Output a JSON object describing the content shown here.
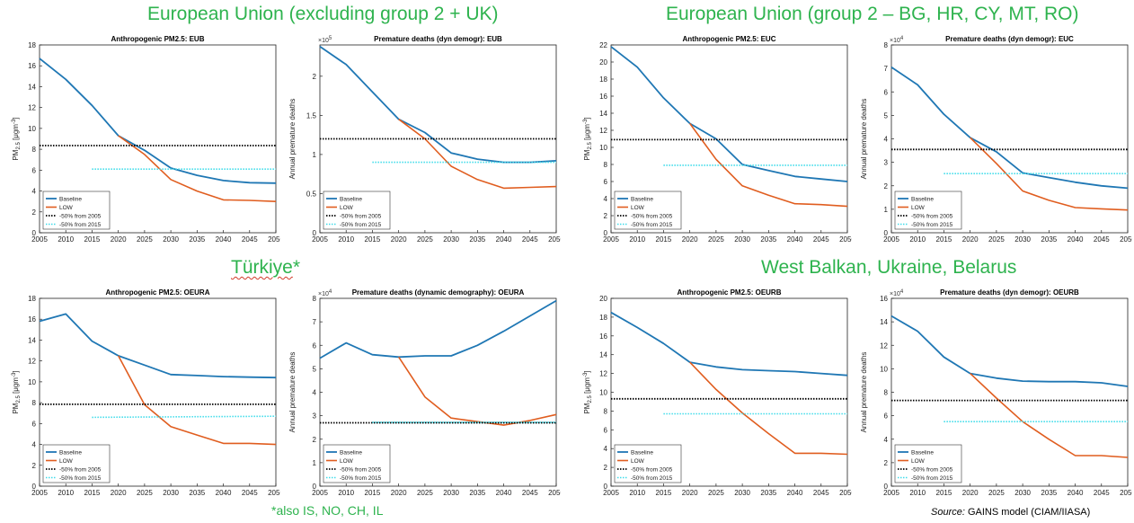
{
  "region_titles": {
    "eub": "European Union (excluding group 2 + UK)",
    "euc": "European Union (group 2 – BG, HR, CY, MT, RO)",
    "turkiye_word": "Türkiye",
    "turkiye_star": "*",
    "balkan": "West Balkan, Ukraine, Belarus"
  },
  "footnote": "*also IS, NO, CH, IL",
  "source": {
    "label": "Source:",
    "text": " GAINS model (CIAM/IIASA)"
  },
  "colors": {
    "baseline": "#1f77b4",
    "low": "#e05d1f",
    "ref2005": "#000000",
    "ref2015": "#3fdcea",
    "title_green": "#2eb34e"
  },
  "chart_data": [
    {
      "id": "pm_eub",
      "type": "line",
      "title": "Anthropogenic PM2.5: EUB",
      "ylabel": "PM2.5 [μgm-3]",
      "ylabel_kind": "pm",
      "x": [
        2005,
        2010,
        2015,
        2020,
        2025,
        2030,
        2035,
        2040,
        2045,
        2050
      ],
      "xticks": [
        "2005",
        "2010",
        "2015",
        "2020",
        "2025",
        "2030",
        "2035",
        "2040",
        "2045",
        "2050"
      ],
      "ylim": [
        0,
        18
      ],
      "yticks": [
        0,
        2,
        4,
        6,
        8,
        10,
        12,
        14,
        16,
        18
      ],
      "ytick_labels": [
        "0",
        "2",
        "4",
        "6",
        "8",
        "10",
        "12",
        "14",
        "16",
        "18"
      ],
      "exponent": "",
      "series": [
        {
          "name": "Baseline",
          "style": "baseline",
          "x": [
            2005,
            2010,
            2015,
            2020,
            2025,
            2030,
            2035,
            2040,
            2045,
            2050
          ],
          "values": [
            16.7,
            14.7,
            12.2,
            9.3,
            7.9,
            6.2,
            5.5,
            5.0,
            4.8,
            4.75
          ]
        },
        {
          "name": "LOW",
          "style": "low",
          "x": [
            2020,
            2025,
            2030,
            2035,
            2040,
            2045,
            2050
          ],
          "values": [
            9.3,
            7.5,
            5.1,
            4.0,
            3.15,
            3.1,
            3.0
          ]
        },
        {
          "name": "-50% from 2005",
          "style": "ref2005",
          "x": [
            2005,
            2050
          ],
          "values": [
            8.35,
            8.35
          ]
        },
        {
          "name": "-50% from 2015",
          "style": "ref2015",
          "x": [
            2015,
            2050
          ],
          "values": [
            6.1,
            6.1
          ]
        }
      ]
    },
    {
      "id": "pd_eub",
      "type": "line",
      "title": "Premature deaths (dyn demogr): EUB",
      "ylabel": "Annual premature deaths",
      "ylabel_kind": "deaths",
      "x": [
        2005,
        2010,
        2015,
        2020,
        2025,
        2030,
        2035,
        2040,
        2045,
        2050
      ],
      "xticks": [
        "2005",
        "2010",
        "2015",
        "2020",
        "2025",
        "2030",
        "2035",
        "2040",
        "2045",
        "2050"
      ],
      "ylim": [
        0,
        2.4
      ],
      "yticks": [
        0,
        0.5,
        1,
        1.5,
        2
      ],
      "ytick_labels": [
        "0",
        "0.5",
        "1",
        "1.5",
        "2"
      ],
      "exponent": "5",
      "series": [
        {
          "name": "Baseline",
          "style": "baseline",
          "x": [
            2005,
            2010,
            2015,
            2020,
            2025,
            2030,
            2035,
            2040,
            2045,
            2050
          ],
          "values": [
            2.38,
            2.15,
            1.8,
            1.45,
            1.28,
            1.02,
            0.94,
            0.9,
            0.9,
            0.92
          ]
        },
        {
          "name": "LOW",
          "style": "low",
          "x": [
            2020,
            2025,
            2030,
            2035,
            2040,
            2045,
            2050
          ],
          "values": [
            1.45,
            1.2,
            0.85,
            0.68,
            0.57,
            0.58,
            0.59
          ]
        },
        {
          "name": "-50% from 2005",
          "style": "ref2005",
          "x": [
            2005,
            2050
          ],
          "values": [
            1.2,
            1.2
          ]
        },
        {
          "name": "-50% from 2015",
          "style": "ref2015",
          "x": [
            2015,
            2050
          ],
          "values": [
            0.9,
            0.9
          ]
        }
      ]
    },
    {
      "id": "pm_euc",
      "type": "line",
      "title": "Anthropogenic PM2.5: EUC",
      "ylabel": "PM2.5 [μgm-3]",
      "ylabel_kind": "pm",
      "x": [
        2005,
        2010,
        2015,
        2020,
        2025,
        2030,
        2035,
        2040,
        2045,
        2050
      ],
      "xticks": [
        "2005",
        "2010",
        "2015",
        "2020",
        "2025",
        "2030",
        "2035",
        "2040",
        "2045",
        "2050"
      ],
      "ylim": [
        0,
        22
      ],
      "yticks": [
        0,
        2,
        4,
        6,
        8,
        10,
        12,
        14,
        16,
        18,
        20,
        22
      ],
      "ytick_labels": [
        "0",
        "2",
        "4",
        "6",
        "8",
        "10",
        "12",
        "14",
        "16",
        "18",
        "20",
        "22"
      ],
      "exponent": "",
      "series": [
        {
          "name": "Baseline",
          "style": "baseline",
          "x": [
            2005,
            2010,
            2015,
            2020,
            2025,
            2030,
            2035,
            2040,
            2045,
            2050
          ],
          "values": [
            21.8,
            19.4,
            15.8,
            12.8,
            11.0,
            8.0,
            7.3,
            6.6,
            6.3,
            6.0
          ]
        },
        {
          "name": "LOW",
          "style": "low",
          "x": [
            2020,
            2025,
            2030,
            2035,
            2040,
            2045,
            2050
          ],
          "values": [
            12.8,
            8.6,
            5.5,
            4.4,
            3.4,
            3.3,
            3.1
          ]
        },
        {
          "name": "-50% from 2005",
          "style": "ref2005",
          "x": [
            2005,
            2050
          ],
          "values": [
            10.9,
            10.9
          ]
        },
        {
          "name": "-50% from 2015",
          "style": "ref2015",
          "x": [
            2015,
            2050
          ],
          "values": [
            7.9,
            7.9
          ]
        }
      ]
    },
    {
      "id": "pd_euc",
      "type": "line",
      "title": "Premature deaths (dyn demogr): EUC",
      "ylabel": "Annual premature deaths",
      "ylabel_kind": "deaths",
      "x": [
        2005,
        2010,
        2015,
        2020,
        2025,
        2030,
        2035,
        2040,
        2045,
        2050
      ],
      "xticks": [
        "2005",
        "2010",
        "2015",
        "2020",
        "2025",
        "2030",
        "2035",
        "2040",
        "2045",
        "2050"
      ],
      "ylim": [
        0,
        8
      ],
      "yticks": [
        0,
        1,
        2,
        3,
        4,
        5,
        6,
        7,
        8
      ],
      "ytick_labels": [
        "0",
        "1",
        "2",
        "3",
        "4",
        "5",
        "6",
        "7",
        "8"
      ],
      "exponent": "4",
      "series": [
        {
          "name": "Baseline",
          "style": "baseline",
          "x": [
            2005,
            2010,
            2015,
            2020,
            2025,
            2030,
            2035,
            2040,
            2045,
            2050
          ],
          "values": [
            7.05,
            6.3,
            5.05,
            4.05,
            3.45,
            2.55,
            2.35,
            2.15,
            2.0,
            1.9
          ]
        },
        {
          "name": "LOW",
          "style": "low",
          "x": [
            2020,
            2025,
            2030,
            2035,
            2040,
            2045,
            2050
          ],
          "values": [
            4.05,
            2.95,
            1.78,
            1.38,
            1.07,
            1.02,
            0.97
          ]
        },
        {
          "name": "-50% from 2005",
          "style": "ref2005",
          "x": [
            2005,
            2050
          ],
          "values": [
            3.55,
            3.55
          ]
        },
        {
          "name": "-50% from 2015",
          "style": "ref2015",
          "x": [
            2015,
            2050
          ],
          "values": [
            2.52,
            2.52
          ]
        }
      ]
    },
    {
      "id": "pm_oeura",
      "type": "line",
      "title": "Anthropogenic PM2.5: OEURA",
      "ylabel": "PM2.5 [μgm-3]",
      "ylabel_kind": "pm",
      "x": [
        2005,
        2010,
        2015,
        2020,
        2025,
        2030,
        2035,
        2040,
        2045,
        2050
      ],
      "xticks": [
        "2005",
        "2010",
        "2015",
        "2020",
        "2025",
        "2030",
        "2035",
        "2040",
        "2045",
        "2050"
      ],
      "ylim": [
        0,
        18
      ],
      "yticks": [
        0,
        2,
        4,
        6,
        8,
        10,
        12,
        14,
        16,
        18
      ],
      "ytick_labels": [
        "0",
        "2",
        "4",
        "6",
        "8",
        "10",
        "12",
        "14",
        "16",
        "18"
      ],
      "exponent": "",
      "series": [
        {
          "name": "Baseline",
          "style": "baseline",
          "x": [
            2005,
            2010,
            2015,
            2020,
            2025,
            2030,
            2035,
            2040,
            2045,
            2050
          ],
          "values": [
            15.8,
            16.5,
            13.9,
            12.5,
            11.6,
            10.7,
            10.6,
            10.5,
            10.45,
            10.4
          ]
        },
        {
          "name": "LOW",
          "style": "low",
          "x": [
            2020,
            2025,
            2030,
            2035,
            2040,
            2045,
            2050
          ],
          "values": [
            12.5,
            7.8,
            5.7,
            4.9,
            4.1,
            4.1,
            4.0
          ]
        },
        {
          "name": "-50% from 2005",
          "style": "ref2005",
          "x": [
            2005,
            2050
          ],
          "values": [
            7.85,
            7.85
          ]
        },
        {
          "name": "-50% from 2015",
          "style": "ref2015",
          "x": [
            2015,
            2050
          ],
          "values": [
            6.6,
            6.7
          ]
        }
      ]
    },
    {
      "id": "pd_oeura",
      "type": "line",
      "title": "Premature deaths (dynamic demography): OEURA",
      "ylabel": "Annual premature deaths",
      "ylabel_kind": "deaths",
      "x": [
        2005,
        2010,
        2015,
        2020,
        2025,
        2030,
        2035,
        2040,
        2045,
        2050
      ],
      "xticks": [
        "2005",
        "2010",
        "2015",
        "2020",
        "2025",
        "2030",
        "2035",
        "2040",
        "2045",
        "2050"
      ],
      "ylim": [
        0,
        8
      ],
      "yticks": [
        0,
        1,
        2,
        3,
        4,
        5,
        6,
        7,
        8
      ],
      "ytick_labels": [
        "0",
        "1",
        "2",
        "3",
        "4",
        "5",
        "6",
        "7",
        "8"
      ],
      "exponent": "4",
      "series": [
        {
          "name": "Baseline",
          "style": "baseline",
          "x": [
            2005,
            2010,
            2015,
            2020,
            2025,
            2030,
            2035,
            2040,
            2045,
            2050
          ],
          "values": [
            5.45,
            6.1,
            5.6,
            5.5,
            5.55,
            5.55,
            6.0,
            6.6,
            7.25,
            7.9
          ]
        },
        {
          "name": "LOW",
          "style": "low",
          "x": [
            2020,
            2025,
            2030,
            2035,
            2040,
            2045,
            2050
          ],
          "values": [
            5.5,
            3.8,
            2.9,
            2.75,
            2.6,
            2.8,
            3.05
          ]
        },
        {
          "name": "-50% from 2005",
          "style": "ref2005",
          "x": [
            2005,
            2050
          ],
          "values": [
            2.7,
            2.7
          ]
        },
        {
          "name": "-50% from 2015",
          "style": "ref2015",
          "x": [
            2015,
            2050
          ],
          "values": [
            2.72,
            2.72
          ]
        }
      ]
    },
    {
      "id": "pm_oeurb",
      "type": "line",
      "title": "Anthropogenic PM2.5: OEURB",
      "ylabel": "PM2.5 [μgm-3]",
      "ylabel_kind": "pm",
      "x": [
        2005,
        2010,
        2015,
        2020,
        2025,
        2030,
        2035,
        2040,
        2045,
        2050
      ],
      "xticks": [
        "2005",
        "2010",
        "2015",
        "2020",
        "2025",
        "2030",
        "2035",
        "2040",
        "2045",
        "2050"
      ],
      "ylim": [
        0,
        20
      ],
      "yticks": [
        0,
        2,
        4,
        6,
        8,
        10,
        12,
        14,
        16,
        18,
        20
      ],
      "ytick_labels": [
        "0",
        "2",
        "4",
        "6",
        "8",
        "10",
        "12",
        "14",
        "16",
        "18",
        "20"
      ],
      "exponent": "",
      "series": [
        {
          "name": "Baseline",
          "style": "baseline",
          "x": [
            2005,
            2010,
            2015,
            2020,
            2025,
            2030,
            2035,
            2040,
            2045,
            2050
          ],
          "values": [
            18.5,
            16.9,
            15.2,
            13.2,
            12.7,
            12.4,
            12.3,
            12.2,
            12.0,
            11.8
          ]
        },
        {
          "name": "LOW",
          "style": "low",
          "x": [
            2020,
            2025,
            2030,
            2035,
            2040,
            2045,
            2050
          ],
          "values": [
            13.2,
            10.3,
            7.8,
            5.6,
            3.5,
            3.5,
            3.4
          ]
        },
        {
          "name": "-50% from 2005",
          "style": "ref2005",
          "x": [
            2005,
            2050
          ],
          "values": [
            9.3,
            9.3
          ]
        },
        {
          "name": "-50% from 2015",
          "style": "ref2015",
          "x": [
            2015,
            2050
          ],
          "values": [
            7.7,
            7.7
          ]
        }
      ]
    },
    {
      "id": "pd_oeurb",
      "type": "line",
      "title": "Premature deaths (dyn demogr): OEURB",
      "ylabel": "Annual premature deaths",
      "ylabel_kind": "deaths",
      "x": [
        2005,
        2010,
        2015,
        2020,
        2025,
        2030,
        2035,
        2040,
        2045,
        2050
      ],
      "xticks": [
        "2005",
        "2010",
        "2015",
        "2020",
        "2025",
        "2030",
        "2035",
        "2040",
        "2045",
        "2050"
      ],
      "ylim": [
        0,
        16
      ],
      "yticks": [
        0,
        2,
        4,
        6,
        8,
        10,
        12,
        14,
        16
      ],
      "ytick_labels": [
        "0",
        "2",
        "4",
        "6",
        "8",
        "10",
        "12",
        "14",
        "16"
      ],
      "exponent": "4",
      "series": [
        {
          "name": "Baseline",
          "style": "baseline",
          "x": [
            2005,
            2010,
            2015,
            2020,
            2025,
            2030,
            2035,
            2040,
            2045,
            2050
          ],
          "values": [
            14.5,
            13.2,
            11.0,
            9.6,
            9.2,
            8.95,
            8.9,
            8.9,
            8.8,
            8.5
          ]
        },
        {
          "name": "LOW",
          "style": "low",
          "x": [
            2020,
            2025,
            2030,
            2035,
            2040,
            2045,
            2050
          ],
          "values": [
            9.6,
            7.5,
            5.5,
            4.0,
            2.6,
            2.6,
            2.45
          ]
        },
        {
          "name": "-50% from 2005",
          "style": "ref2005",
          "x": [
            2005,
            2050
          ],
          "values": [
            7.3,
            7.3
          ]
        },
        {
          "name": "-50% from 2015",
          "style": "ref2015",
          "x": [
            2015,
            2050
          ],
          "values": [
            5.5,
            5.5
          ]
        }
      ]
    }
  ]
}
